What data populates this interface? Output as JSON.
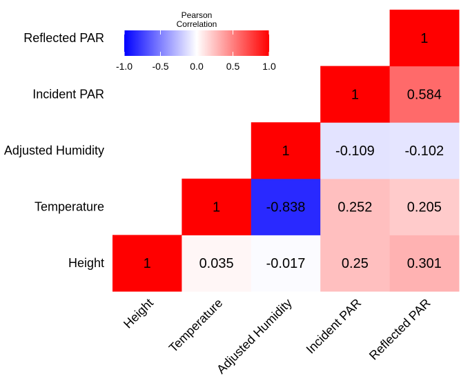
{
  "chart_data": {
    "type": "heatmap",
    "variables": [
      "Height",
      "Temperature",
      "Adjusted Humidity",
      "Incident PAR",
      "Reflected PAR"
    ],
    "cells": [
      {
        "x": "Height",
        "y": "Height",
        "value": 1,
        "label": "1"
      },
      {
        "x": "Temperature",
        "y": "Height",
        "value": 0.035,
        "label": "0.035"
      },
      {
        "x": "Adjusted Humidity",
        "y": "Height",
        "value": -0.017,
        "label": "-0.017"
      },
      {
        "x": "Incident PAR",
        "y": "Height",
        "value": 0.25,
        "label": "0.25"
      },
      {
        "x": "Reflected PAR",
        "y": "Height",
        "value": 0.301,
        "label": "0.301"
      },
      {
        "x": "Temperature",
        "y": "Temperature",
        "value": 1,
        "label": "1"
      },
      {
        "x": "Adjusted Humidity",
        "y": "Temperature",
        "value": -0.838,
        "label": "-0.838"
      },
      {
        "x": "Incident PAR",
        "y": "Temperature",
        "value": 0.252,
        "label": "0.252"
      },
      {
        "x": "Reflected PAR",
        "y": "Temperature",
        "value": 0.205,
        "label": "0.205"
      },
      {
        "x": "Adjusted Humidity",
        "y": "Adjusted Humidity",
        "value": 1,
        "label": "1"
      },
      {
        "x": "Incident PAR",
        "y": "Adjusted Humidity",
        "value": -0.109,
        "label": "-0.109"
      },
      {
        "x": "Reflected PAR",
        "y": "Adjusted Humidity",
        "value": -0.102,
        "label": "-0.102"
      },
      {
        "x": "Incident PAR",
        "y": "Incident PAR",
        "value": 1,
        "label": "1"
      },
      {
        "x": "Reflected PAR",
        "y": "Incident PAR",
        "value": 0.584,
        "label": "0.584"
      },
      {
        "x": "Reflected PAR",
        "y": "Reflected PAR",
        "value": 1,
        "label": "1"
      }
    ],
    "legend": {
      "title_lines": [
        "Pearson",
        "Correlation"
      ],
      "range": [
        -1,
        1
      ],
      "ticks": [
        -1.0,
        -0.5,
        0.0,
        0.5,
        1.0
      ],
      "tick_labels": [
        "-1.0",
        "-0.5",
        "0.0",
        "0.5",
        "1.0"
      ],
      "placement": "top-left"
    },
    "colors": {
      "low": "#0000ff",
      "mid": "#ffffff",
      "high": "#ff0000"
    },
    "grid": false
  }
}
